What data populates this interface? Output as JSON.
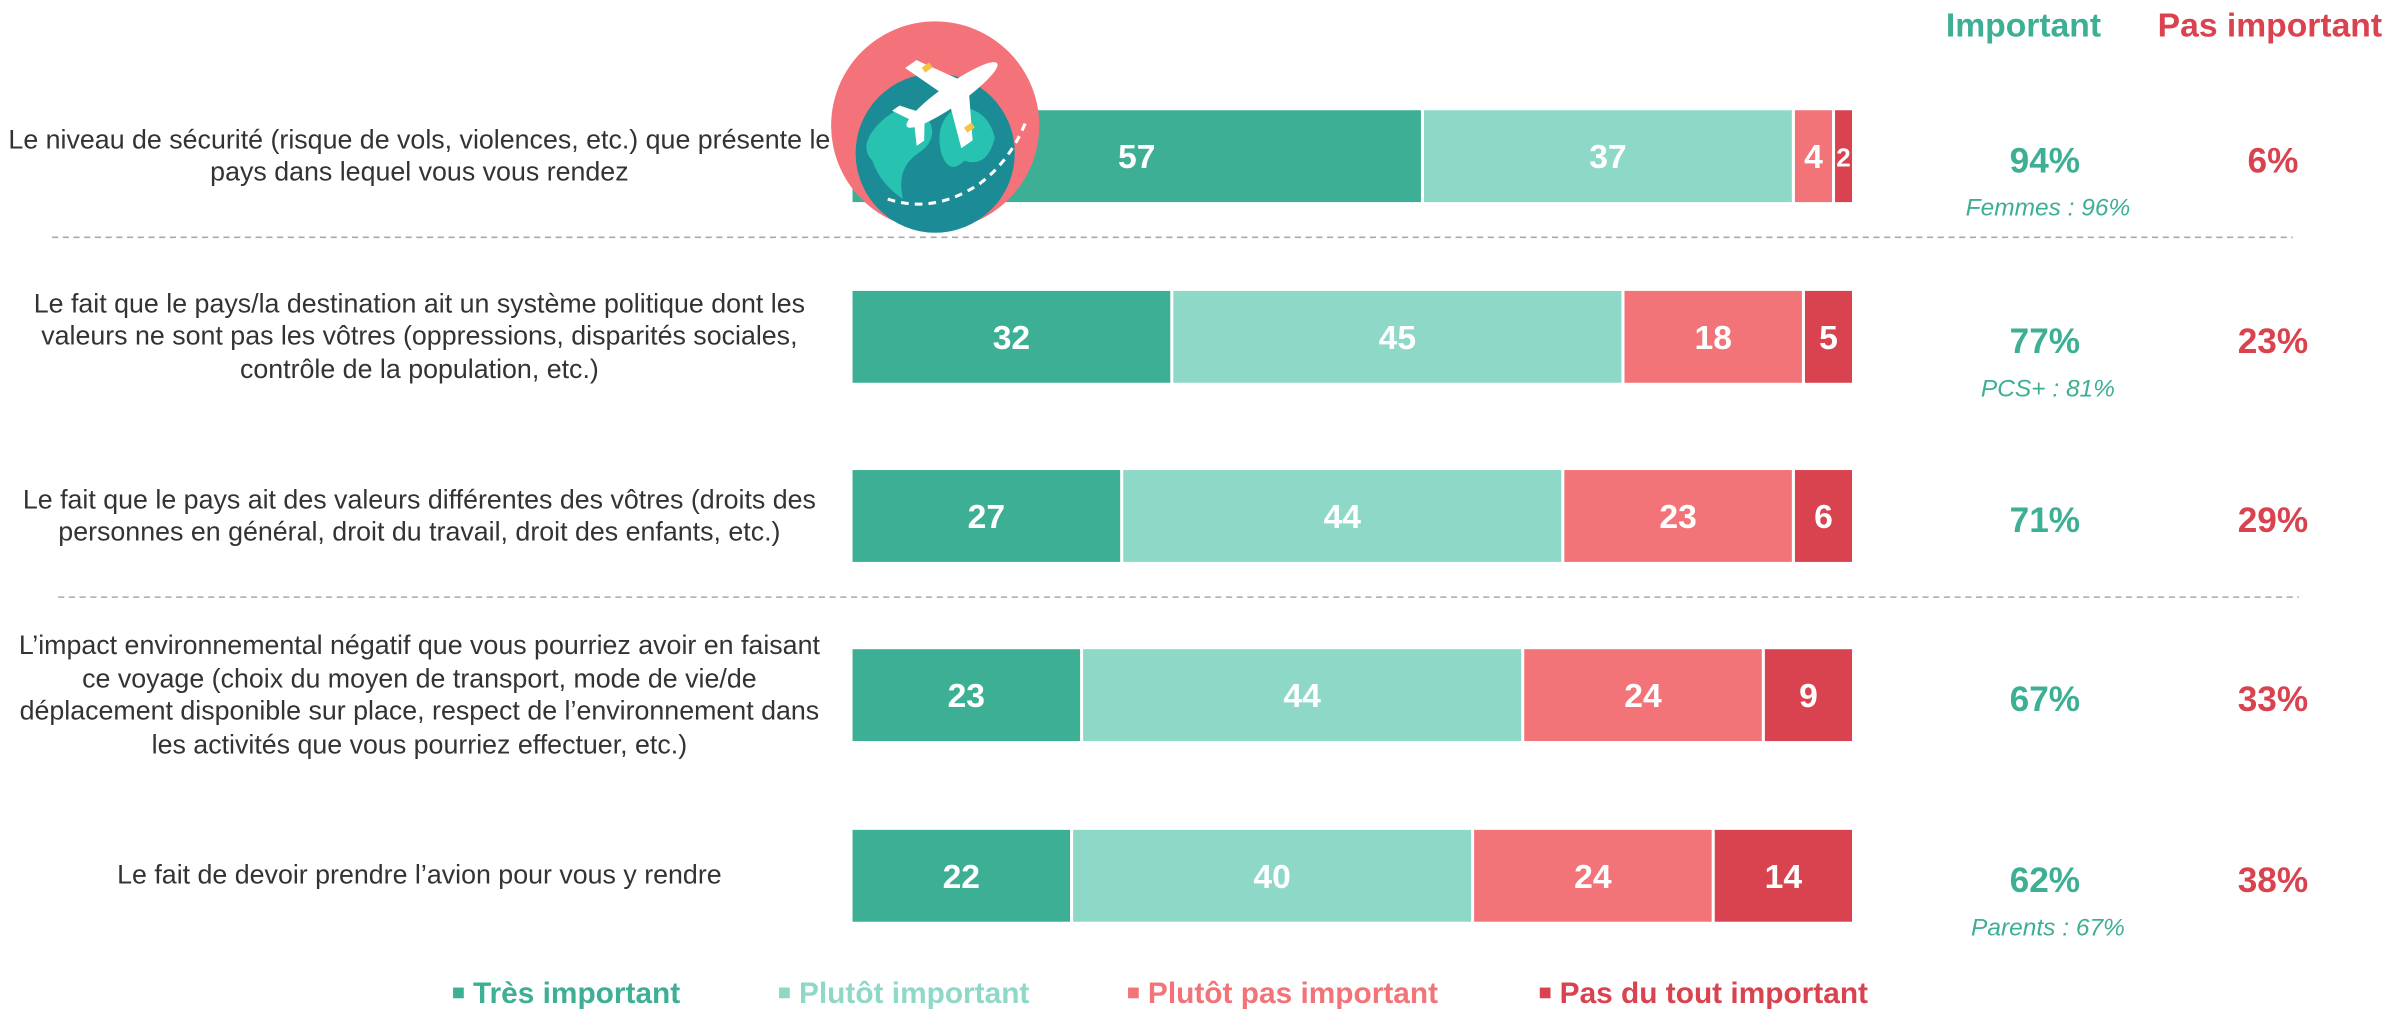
{
  "chart_data": {
    "type": "stacked-bar-horizontal",
    "categories": [
      "Le niveau de sécurité (risque de vols, violences, etc.) que présente le pays dans lequel vous vous rendez",
      "Le fait que le pays/la destination ait un système politique dont les valeurs ne sont pas les vôtres (oppressions, disparités sociales, contrôle de la population, etc.)",
      "Le fait que le pays ait des valeurs différentes des vôtres (droits des personnes en général, droit du travail, droit des enfants, etc.)",
      "L’impact environnemental négatif que vous pourriez avoir en faisant ce voyage (choix du moyen de transport, mode de vie/de déplacement disponible sur place, respect de l’environnement dans les activités que vous pourriez effectuer, etc.)",
      "Le fait de devoir prendre l’avion pour vous y rendre"
    ],
    "series": [
      {
        "name": "Très important",
        "color": "#3daf94",
        "values": [
          57,
          32,
          27,
          23,
          22
        ]
      },
      {
        "name": "Plutôt important",
        "color": "#8ed8c8",
        "values": [
          37,
          45,
          44,
          44,
          40
        ]
      },
      {
        "name": "Plutôt pas important",
        "color": "#f27478",
        "values": [
          4,
          18,
          23,
          24,
          24
        ]
      },
      {
        "name": "Pas du tout important",
        "color": "#d9434f",
        "values": [
          2,
          5,
          6,
          9,
          14
        ]
      }
    ],
    "xlim": [
      0,
      100
    ],
    "summary": [
      {
        "name": "Important",
        "color": "#3daf94",
        "values": [
          94,
          77,
          71,
          67,
          62
        ],
        "value_labels": [
          "94%",
          "77%",
          "71%",
          "67%",
          "62%"
        ]
      },
      {
        "name": "Pas important",
        "color": "#d9434f",
        "values": [
          6,
          23,
          29,
          33,
          38
        ],
        "value_labels": [
          "6%",
          "23%",
          "29%",
          "33%",
          "38%"
        ]
      }
    ],
    "notes": [
      "Femmes : 96%",
      "PCS+ : 81%",
      null,
      null,
      "Parents : 67%"
    ]
  }
}
